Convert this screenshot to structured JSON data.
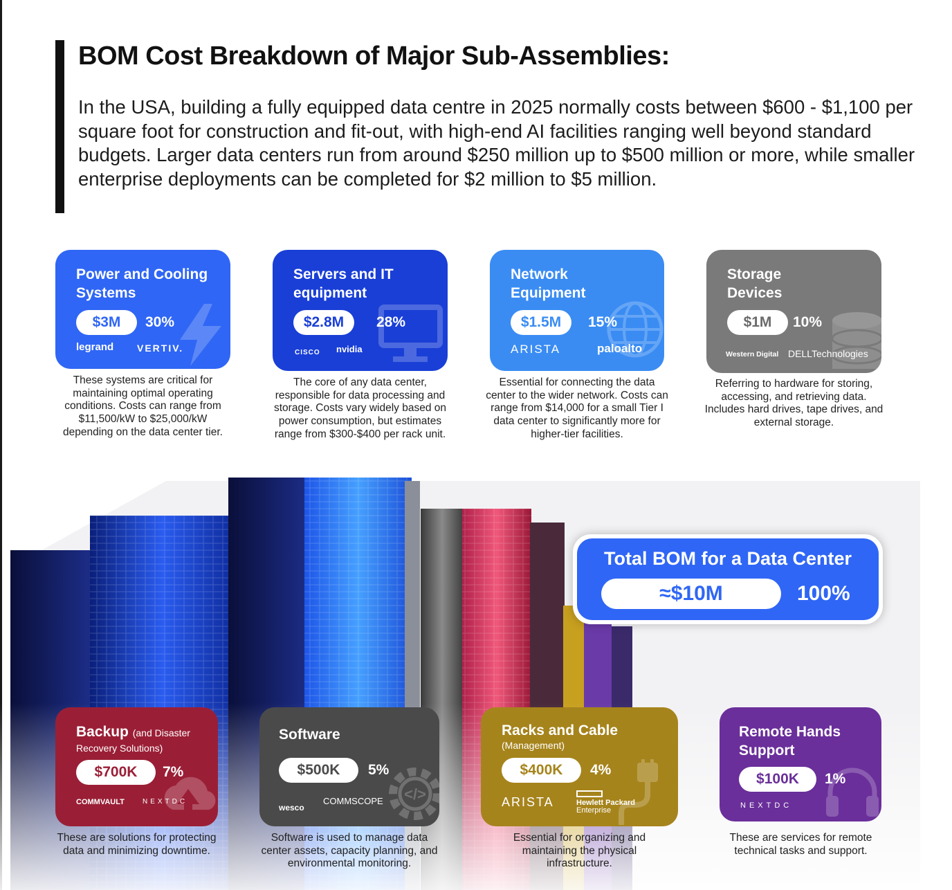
{
  "header": {
    "title": "BOM Cost Breakdown of Major Sub-Assemblies:",
    "intro": "In the USA, building a fully equipped data centre in 2025 normally costs between $600 - $1,100 per square foot for construction and fit-out, with high-end AI facilities ranging well beyond standard budgets. Larger  data centers run from around $250 million up to $500 million or more, while smaller enterprise deployments can be completed for $2 million to $5 million."
  },
  "chart_data": {
    "type": "table",
    "title": "BOM Cost Breakdown of Major Sub-Assemblies:",
    "columns": [
      "component",
      "cost",
      "share_percent"
    ],
    "rows": [
      [
        "Power and Cooling Systems",
        "$3M",
        30
      ],
      [
        "Servers and IT equipment",
        "$2.8M",
        28
      ],
      [
        "Network Equipment",
        "$1.5M",
        15
      ],
      [
        "Storage Devices",
        "$1M",
        10
      ],
      [
        "Backup (and Disaster Recovery Solutions)",
        "$700K",
        7
      ],
      [
        "Software",
        "$500K",
        5
      ],
      [
        "Racks and Cable (Management)",
        "$400K",
        4
      ],
      [
        "Remote Hands Support",
        "$100K",
        1
      ]
    ],
    "total": {
      "label": "Total BOM for a Data Center",
      "cost": "≈$10M",
      "share_percent": 100
    }
  },
  "cards": [
    {
      "title": "Power and Cooling Systems",
      "cost": "$3M",
      "pct": "30%",
      "color": "#2f66f5",
      "logos": [
        "legrand",
        "VERTIV."
      ],
      "icon": "lightning-bolt-icon",
      "desc": "These systems are critical for maintaining optimal operating conditions. Costs can range from $11,500/kW to $25,000/kW depending on the data center tier."
    },
    {
      "title": "Servers and IT equipment",
      "cost": "$2.8M",
      "pct": "28%",
      "color": "#1a3fd6",
      "logos": [
        "CISCO",
        "nvidia"
      ],
      "icon": "monitor-icon",
      "desc": "The core of any data center, responsible for data processing and storage. Costs vary widely based on power consumption, but estimates range from $300-$400 per rack unit."
    },
    {
      "title": "Network Equipment",
      "cost": "$1.5M",
      "pct": "15%",
      "color": "#3a8cf3",
      "logos": [
        "ARISTA",
        "paloalto"
      ],
      "icon": "globe-icon",
      "desc": "Essential for connecting the data center to the wider network. Costs can range from $14,000 for a small Tier I data center to significantly more for higher-tier facilities."
    },
    {
      "title": "Storage Devices",
      "cost": "$1M",
      "pct": "10%",
      "color": "#7a7a7a",
      "logos": [
        "Western Digital",
        "DELLTechnologies"
      ],
      "icon": "database-icon",
      "desc": "Referring to hardware for storing, accessing, and retrieving data. Includes hard drives, tape drives, and external storage."
    },
    {
      "title": "Backup",
      "title_small": "(and Disaster",
      "subtitle": "Recovery Solutions)",
      "cost": "$700K",
      "pct": "7%",
      "color": "#9a1f36",
      "logos": [
        "COMMVAULT",
        "NEXTDC"
      ],
      "icon": "cloud-upload-icon",
      "desc": "These are solutions for protecting data and minimizing downtime."
    },
    {
      "title": "Software",
      "cost": "$500K",
      "pct": "5%",
      "color": "#4a4a4a",
      "logos": [
        "wesco",
        "COMMSCOPE"
      ],
      "icon": "code-gear-icon",
      "desc": "Software is used to manage data center assets, capacity planning, and environmental monitoring."
    },
    {
      "title": "Racks and Cable",
      "subtitle": "(Management)",
      "cost": "$400K",
      "pct": "4%",
      "color": "#a6841c",
      "logos": [
        "ARISTA",
        "Hewlett Packard",
        "Enterprise"
      ],
      "icon": "cable-plug-icon",
      "desc": "Essential for organizing and maintaining the physical infrastructure."
    },
    {
      "title": "Remote Hands Support",
      "cost": "$100K",
      "pct": "1%",
      "color": "#6a2f9a",
      "logos": [
        "NEXTDC"
      ],
      "icon": "headset-icon",
      "desc": "These are services for remote technical tasks and support."
    }
  ],
  "total": {
    "title": "Total BOM for a Data Center",
    "cost": "≈$10M",
    "pct": "100%"
  }
}
